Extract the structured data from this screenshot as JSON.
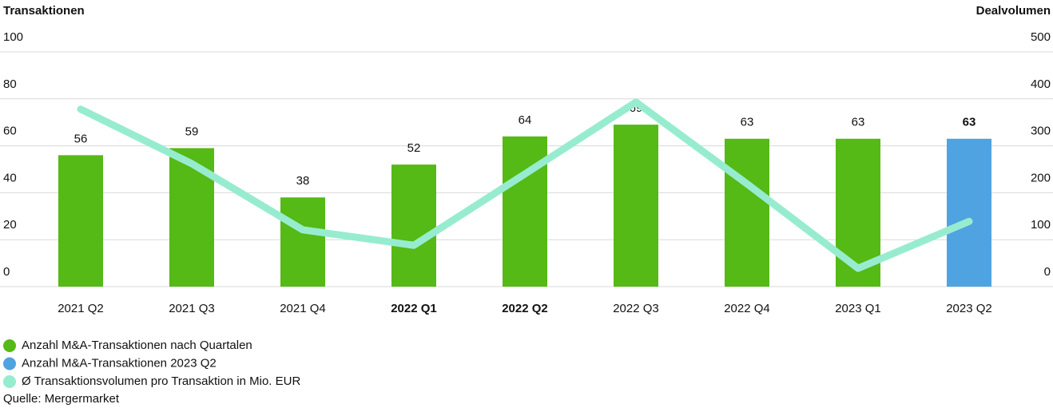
{
  "chart_data": {
    "type": "bar",
    "y_label": "Transaktionen",
    "y2_label": "Dealvolumen",
    "categories": [
      "2021 Q2",
      "2021 Q3",
      "2021 Q4",
      "2022 Q1",
      "2022 Q2",
      "2022 Q3",
      "2022 Q4",
      "2023 Q1",
      "2023 Q2"
    ],
    "bold_categories": [
      3,
      4
    ],
    "series": [
      {
        "name": "Anzahl M&A-Transaktionen nach Quartalen",
        "type": "bar",
        "color": "#55b916",
        "values": [
          56,
          59,
          38,
          52,
          64,
          69,
          63,
          63,
          null
        ]
      },
      {
        "name": "Anzahl M&A-Transaktionen 2023 Q2",
        "type": "bar",
        "color": "#4fa3e0",
        "bold_labels": true,
        "values": [
          null,
          null,
          null,
          null,
          null,
          null,
          null,
          null,
          63
        ]
      },
      {
        "name": "Ø Transaktionsvolumen pro Transaktion in Mio. EUR",
        "type": "line",
        "axis": "y2",
        "color": "#97ecd0",
        "values": [
          378,
          262,
          121,
          88,
          240,
          393,
          219,
          39,
          139
        ]
      }
    ],
    "ylim": [
      0,
      100
    ],
    "yticks": [
      0,
      20,
      40,
      60,
      80,
      100
    ],
    "y2lim": [
      0,
      500
    ],
    "y2ticks": [
      0,
      100,
      200,
      300,
      400,
      500
    ],
    "grid": true,
    "source": "Quelle: Mergermarket"
  }
}
